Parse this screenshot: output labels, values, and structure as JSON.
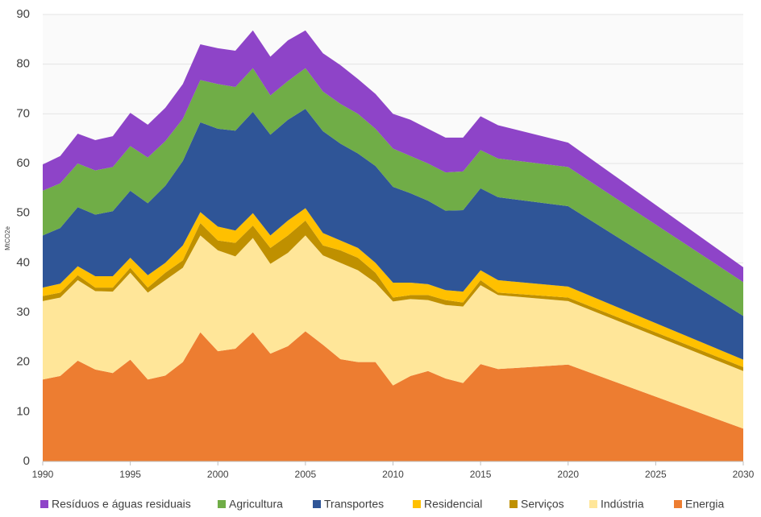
{
  "chart_data": {
    "type": "stacked-area",
    "y_label": "MtCO2e",
    "x": [
      1990,
      1991,
      1992,
      1993,
      1994,
      1995,
      1996,
      1997,
      1998,
      1999,
      2000,
      2001,
      2002,
      2003,
      2004,
      2005,
      2006,
      2007,
      2008,
      2009,
      2010,
      2011,
      2012,
      2013,
      2014,
      2015,
      2016,
      2020,
      2030
    ],
    "series": [
      {
        "name": "Energia",
        "color": "#ed7d31",
        "values": [
          16.5,
          17.2,
          20.3,
          18.5,
          17.8,
          20.5,
          16.5,
          17.3,
          20,
          26,
          22.2,
          22.7,
          26,
          21.7,
          23.2,
          26.2,
          23.5,
          20.6,
          20,
          20,
          15.3,
          17.2,
          18.2,
          16.7,
          15.8,
          19.6,
          18.6,
          19.5,
          6.6
        ]
      },
      {
        "name": "Indústria",
        "color": "#ffe699",
        "values": [
          15.8,
          15.8,
          16.2,
          15.8,
          16.4,
          17.5,
          17.5,
          19.2,
          19,
          19.5,
          20.3,
          18.6,
          19,
          18.1,
          18.8,
          19.3,
          18,
          19.4,
          18.5,
          16,
          16.9,
          15.5,
          14.3,
          14.8,
          15.4,
          15.9,
          14.9,
          12.8,
          11.6
        ]
      },
      {
        "name": "Serviços",
        "color": "#bf9000",
        "values": [
          1,
          1,
          1,
          0.7,
          0.8,
          1,
          1,
          1.5,
          1.5,
          2.5,
          2,
          2.7,
          2.5,
          3.2,
          3.5,
          3,
          2,
          2.5,
          2.5,
          2,
          0.8,
          0.8,
          1,
          1,
          0.8,
          1,
          0.5,
          0.7,
          0.8
        ]
      },
      {
        "name": "Residencial",
        "color": "#ffc000",
        "values": [
          1.7,
          1.8,
          1.8,
          2.3,
          2.3,
          2,
          2.5,
          2,
          3,
          2.2,
          2.8,
          2.5,
          2.5,
          2.5,
          3,
          2.5,
          2.5,
          2,
          2,
          2,
          3,
          2.5,
          2.2,
          2,
          2.2,
          2,
          2.5,
          2.2,
          1.5
        ]
      },
      {
        "name": "Transportes",
        "color": "#2f5597",
        "values": [
          10.5,
          11.2,
          11.9,
          12.4,
          13.1,
          13.5,
          14.5,
          15.5,
          17,
          18.1,
          19.7,
          20.1,
          20.4,
          20.3,
          20.3,
          20,
          20.5,
          19.5,
          19,
          19.5,
          19.3,
          18,
          16.8,
          16,
          16.4,
          16.5,
          16.7,
          16.2,
          8.8
        ]
      },
      {
        "name": "Agricultura",
        "color": "#70ad47",
        "values": [
          9,
          9,
          8.8,
          8.9,
          8.9,
          9,
          9.2,
          9,
          8.5,
          8.5,
          9,
          8.8,
          8.8,
          7.9,
          7.8,
          8.2,
          8,
          8,
          8,
          7.5,
          7.7,
          7.5,
          7.5,
          7.7,
          7.8,
          7.7,
          7.8,
          7.9,
          6.8
        ]
      },
      {
        "name": "Resíduos e águas residuais",
        "color": "#8e44c8",
        "values": [
          5.3,
          5.5,
          6,
          6.1,
          6.2,
          6.7,
          6.6,
          6.7,
          7,
          7.2,
          7.2,
          7.3,
          7.6,
          7.8,
          8.2,
          7.6,
          7.7,
          7.8,
          7,
          7,
          7,
          7.3,
          7,
          7,
          6.8,
          6.8,
          6.7,
          4.9,
          3
        ]
      }
    ],
    "xlim": [
      1990,
      2030
    ],
    "xticks": [
      1990,
      1995,
      2000,
      2005,
      2010,
      2015,
      2020,
      2025,
      2030
    ],
    "ylim": [
      0,
      90
    ],
    "yticks": [
      0,
      10,
      20,
      30,
      40,
      50,
      60,
      70,
      80,
      90
    ],
    "grid": true,
    "legend": "bottom"
  }
}
